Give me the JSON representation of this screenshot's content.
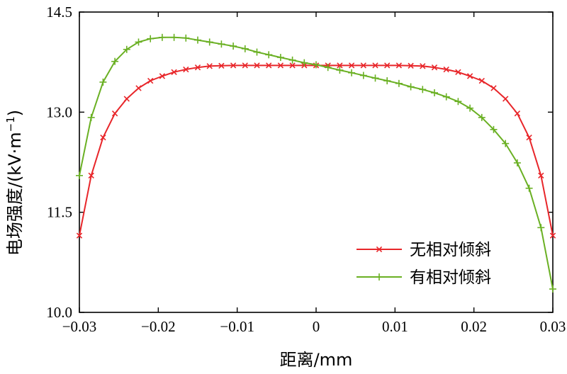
{
  "chart_data": {
    "type": "line",
    "title": "",
    "xlabel": "距离/mm",
    "ylabel": "电场强度/(kV·m",
    "ylabel_superscript": "−1",
    "ylabel_close": ")",
    "xlim": [
      -0.03,
      0.03
    ],
    "ylim": [
      10.0,
      14.5
    ],
    "xticks": [
      -0.03,
      -0.02,
      -0.01,
      0,
      0.01,
      0.02,
      0.03
    ],
    "xtick_labels": [
      "−0.03",
      "−0.02",
      "−0.01",
      "0",
      "0.01",
      "0.02",
      "0.03"
    ],
    "yticks": [
      10.0,
      11.5,
      13.0,
      14.5
    ],
    "ytick_labels": [
      "10.0",
      "11.5",
      "13.0",
      "14.5"
    ],
    "grid": false,
    "legend_position": "bottom-right",
    "series": [
      {
        "name": "无相对倾斜",
        "color": "#e8262a",
        "marker": "x",
        "x": [
          -0.03,
          -0.0285,
          -0.027,
          -0.0255,
          -0.024,
          -0.0225,
          -0.021,
          -0.0195,
          -0.018,
          -0.0165,
          -0.015,
          -0.0135,
          -0.012,
          -0.0105,
          -0.009,
          -0.0075,
          -0.006,
          -0.0045,
          -0.003,
          -0.0015,
          0.0,
          0.0015,
          0.003,
          0.0045,
          0.006,
          0.0075,
          0.009,
          0.0105,
          0.012,
          0.0135,
          0.015,
          0.0165,
          0.018,
          0.0195,
          0.021,
          0.0225,
          0.024,
          0.0255,
          0.027,
          0.0285,
          0.03
        ],
        "y": [
          11.15,
          12.05,
          12.62,
          12.98,
          13.2,
          13.36,
          13.47,
          13.54,
          13.6,
          13.64,
          13.67,
          13.69,
          13.695,
          13.7,
          13.7,
          13.7,
          13.7,
          13.7,
          13.7,
          13.7,
          13.7,
          13.7,
          13.7,
          13.7,
          13.7,
          13.7,
          13.7,
          13.7,
          13.695,
          13.69,
          13.67,
          13.64,
          13.6,
          13.54,
          13.47,
          13.36,
          13.2,
          12.98,
          12.62,
          12.05,
          11.15
        ]
      },
      {
        "name": "有相对倾斜",
        "color": "#6ab023",
        "marker": "+",
        "x": [
          -0.03,
          -0.0285,
          -0.027,
          -0.0255,
          -0.024,
          -0.0225,
          -0.021,
          -0.0195,
          -0.018,
          -0.0165,
          -0.015,
          -0.0135,
          -0.012,
          -0.0105,
          -0.009,
          -0.0075,
          -0.006,
          -0.0045,
          -0.003,
          -0.0015,
          0.0,
          0.0015,
          0.003,
          0.0045,
          0.006,
          0.0075,
          0.009,
          0.0105,
          0.012,
          0.0135,
          0.015,
          0.0165,
          0.018,
          0.0195,
          0.021,
          0.0225,
          0.024,
          0.0255,
          0.027,
          0.0285,
          0.03
        ],
        "y": [
          12.05,
          12.92,
          13.45,
          13.76,
          13.94,
          14.05,
          14.1,
          14.12,
          14.12,
          14.11,
          14.08,
          14.05,
          14.02,
          13.99,
          13.95,
          13.9,
          13.86,
          13.82,
          13.78,
          13.74,
          13.71,
          13.67,
          13.63,
          13.59,
          13.55,
          13.51,
          13.47,
          13.43,
          13.38,
          13.34,
          13.29,
          13.23,
          13.16,
          13.06,
          12.92,
          12.74,
          12.53,
          12.24,
          11.86,
          11.27,
          10.35
        ]
      }
    ]
  }
}
